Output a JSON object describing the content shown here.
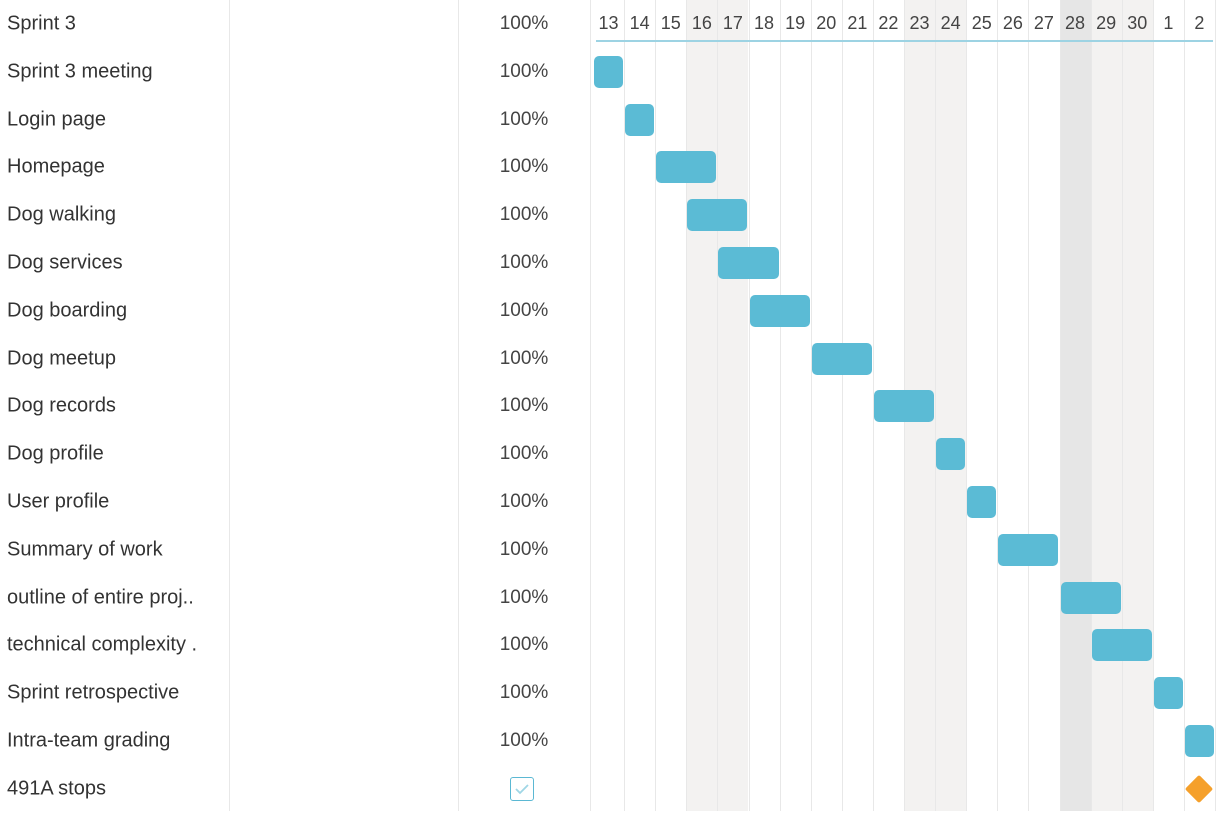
{
  "timeline": {
    "days": [
      "13",
      "14",
      "15",
      "16",
      "17",
      "18",
      "19",
      "20",
      "21",
      "22",
      "23",
      "24",
      "25",
      "26",
      "27",
      "28",
      "29",
      "30",
      "1",
      "2"
    ],
    "weekend_columns": [
      "16",
      "17",
      "23",
      "24",
      "28",
      "29",
      "30"
    ],
    "today_column": "28"
  },
  "tasks": [
    {
      "name": "Sprint 3",
      "progress": "100%",
      "type": "header"
    },
    {
      "name": "Sprint 3 meeting",
      "progress": "100%",
      "type": "task",
      "start_day": "13",
      "end_day": "13"
    },
    {
      "name": "Login page",
      "progress": "100%",
      "type": "task",
      "start_day": "14",
      "end_day": "14"
    },
    {
      "name": "Homepage",
      "progress": "100%",
      "type": "task",
      "start_day": "15",
      "end_day": "16"
    },
    {
      "name": "Dog walking",
      "progress": "100%",
      "type": "task",
      "start_day": "16",
      "end_day": "17"
    },
    {
      "name": "Dog services",
      "progress": "100%",
      "type": "task",
      "start_day": "17",
      "end_day": "18"
    },
    {
      "name": "Dog boarding",
      "progress": "100%",
      "type": "task",
      "start_day": "18",
      "end_day": "19"
    },
    {
      "name": "Dog meetup",
      "progress": "100%",
      "type": "task",
      "start_day": "20",
      "end_day": "21"
    },
    {
      "name": "Dog records",
      "progress": "100%",
      "type": "task",
      "start_day": "22",
      "end_day": "23"
    },
    {
      "name": "Dog profile",
      "progress": "100%",
      "type": "task",
      "start_day": "24",
      "end_day": "24"
    },
    {
      "name": "User profile",
      "progress": "100%",
      "type": "task",
      "start_day": "25",
      "end_day": "25"
    },
    {
      "name": "Summary of work",
      "progress": "100%",
      "type": "task",
      "start_day": "26",
      "end_day": "27"
    },
    {
      "name": "outline of entire proj..",
      "progress": "100%",
      "type": "task",
      "start_day": "28",
      "end_day": "29"
    },
    {
      "name": "technical complexity .",
      "progress": "100%",
      "type": "task",
      "start_day": "29",
      "end_day": "30"
    },
    {
      "name": "Sprint retrospective",
      "progress": "100%",
      "type": "task",
      "start_day": "1",
      "end_day": "1"
    },
    {
      "name": "Intra-team grading",
      "progress": "100%",
      "type": "task",
      "start_day": "2",
      "end_day": "2"
    },
    {
      "name": "491A stops",
      "progress": "",
      "type": "milestone",
      "start_day": "2",
      "end_day": "2",
      "completed": true
    }
  ],
  "colors": {
    "bar": "#5bbbd5",
    "milestone": "#f5a02b",
    "weekend_shade": "#f3f2f1",
    "today_shade": "#e6e6e6",
    "grid": "#e8e8e8"
  },
  "icons": {
    "milestone": "diamond-icon",
    "done": "checkmark-icon"
  }
}
